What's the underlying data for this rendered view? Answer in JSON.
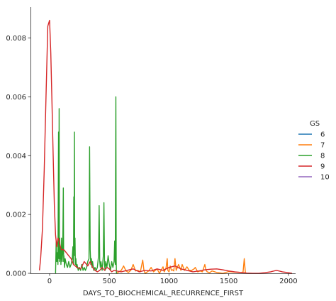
{
  "chart_data": {
    "type": "line",
    "xlabel": "DAYS_TO_BIOCHEMICAL_RECURRENCE_FIRST",
    "ylabel": "",
    "xlim": [
      -160,
      2060
    ],
    "ylim": [
      0,
      0.00905
    ],
    "x_ticks": [
      0,
      500,
      1000,
      1500,
      2000
    ],
    "x_tick_labels": [
      "0",
      "500",
      "1000",
      "1500",
      "2000"
    ],
    "y_ticks": [
      0,
      0.002,
      0.004,
      0.006,
      0.008
    ],
    "y_tick_labels": [
      "0.000",
      "0.002",
      "0.004",
      "0.006",
      "0.008"
    ],
    "grid": false,
    "legend": {
      "title": "GS",
      "placement": "right",
      "entries": [
        {
          "label": "6",
          "color": "#1f77b4"
        },
        {
          "label": "7",
          "color": "#ff7f0e"
        },
        {
          "label": "8",
          "color": "#2ca02c"
        },
        {
          "label": "9",
          "color": "#d62728"
        },
        {
          "label": "10",
          "color": "#9467bd"
        }
      ]
    },
    "series": [
      {
        "name": "7",
        "color": "#ff7f0e",
        "x": [
          560,
          580,
          600,
          620,
          640,
          660,
          680,
          700,
          720,
          740,
          760,
          780,
          790,
          800,
          830,
          850,
          870,
          900,
          920,
          950,
          960,
          975,
          985,
          990,
          1000,
          1010,
          1020,
          1030,
          1040,
          1050,
          1060,
          1070,
          1080,
          1100,
          1110,
          1130,
          1150,
          1170,
          1190,
          1210,
          1220,
          1240,
          1260,
          1280,
          1300,
          1310,
          1320,
          1340,
          1360,
          1400,
          1450,
          1500,
          1550,
          1600,
          1620,
          1630,
          1640
        ],
        "values": [
          0.0,
          5e-05,
          0.0001,
          0.00025,
          8e-05,
          3e-05,
          0.0001,
          0.0003,
          8e-05,
          0.0001,
          5e-05,
          0.00045,
          0.0001,
          0.0,
          8e-05,
          0.0002,
          5e-05,
          0.00015,
          0.0,
          0.00022,
          5e-05,
          0.00018,
          0.0005,
          0.0001,
          5e-05,
          0.00025,
          0.0001,
          0.00012,
          8e-05,
          0.0005,
          0.0001,
          0.0002,
          0.0003,
          0.0001,
          0.0003,
          0.0001,
          0.00022,
          0.0001,
          0.0001,
          0.00015,
          0.0002,
          5e-05,
          8e-05,
          5e-05,
          0.0003,
          0.0001,
          5e-05,
          2e-05,
          8e-05,
          3e-05,
          0.0,
          6e-05,
          4e-05,
          3e-05,
          4e-05,
          0.0005,
          0.0
        ]
      },
      {
        "name": "8",
        "color": "#2ca02c",
        "x": [
          50,
          55,
          60,
          65,
          70,
          75,
          78,
          80,
          82,
          85,
          88,
          90,
          95,
          100,
          105,
          110,
          115,
          118,
          120,
          125,
          130,
          140,
          150,
          160,
          170,
          180,
          190,
          195,
          200,
          203,
          205,
          208,
          210,
          213,
          216,
          220,
          225,
          230,
          240,
          250,
          260,
          270,
          280,
          290,
          300,
          310,
          320,
          330,
          335,
          340,
          345,
          350,
          355,
          360,
          370,
          380,
          390,
          400,
          410,
          415,
          420,
          425,
          430,
          440,
          450,
          455,
          460,
          465,
          470,
          480,
          490,
          500,
          510,
          520,
          530,
          540,
          545,
          550,
          555,
          558,
          560
        ],
        "values": [
          0.0,
          0.0011,
          0.0004,
          0.0007,
          0.0003,
          0.0048,
          0.0005,
          0.0056,
          0.0004,
          0.0012,
          0.0005,
          0.0009,
          0.0003,
          0.0012,
          0.0004,
          0.0007,
          0.0029,
          0.0004,
          0.0006,
          0.0002,
          0.0005,
          0.0003,
          0.0002,
          0.0004,
          0.0002,
          0.0003,
          0.0005,
          0.0009,
          0.0003,
          0.0026,
          0.0008,
          0.0048,
          0.0006,
          0.0012,
          0.0003,
          0.0005,
          0.0002,
          0.0003,
          0.0001,
          0.0002,
          0.0001,
          0.0003,
          0.0001,
          0.0002,
          0.0001,
          0.0002,
          0.0004,
          0.0005,
          0.0043,
          0.0008,
          0.0003,
          0.0005,
          0.0002,
          0.0004,
          0.0001,
          0.0002,
          0.0001,
          0.0002,
          0.0006,
          0.0023,
          0.0004,
          0.0002,
          0.0004,
          0.0001,
          0.0006,
          0.0024,
          0.0003,
          0.0001,
          0.0004,
          0.0002,
          0.0006,
          0.0003,
          0.0001,
          0.0004,
          0.0002,
          0.0004,
          0.0011,
          0.0003,
          0.006,
          0.0004,
          0.0
        ]
      },
      {
        "name": "9",
        "color": "#d62728",
        "x": [
          -85,
          -75,
          -60,
          -45,
          -30,
          -15,
          -8,
          0,
          10,
          20,
          30,
          40,
          50,
          60,
          70,
          80,
          90,
          100,
          120,
          140,
          160,
          180,
          200,
          230,
          260,
          290,
          320,
          340,
          360,
          380,
          400,
          420,
          440,
          460,
          480,
          500,
          520,
          540,
          560,
          600,
          650,
          700,
          750,
          800,
          850,
          900,
          950,
          1000,
          1050,
          1100,
          1150,
          1200,
          1250,
          1300,
          1350,
          1400,
          1450,
          1500,
          1550,
          1600,
          1650,
          1700,
          1750,
          1800,
          1850,
          1900,
          1950,
          2000,
          2030
        ],
        "values": [
          0.0001,
          0.0005,
          0.0015,
          0.0035,
          0.006,
          0.0084,
          0.0085,
          0.0086,
          0.0075,
          0.0058,
          0.004,
          0.0023,
          0.0013,
          0.0009,
          0.0012,
          0.0011,
          0.0009,
          0.0008,
          0.0008,
          0.0007,
          0.0006,
          0.0005,
          0.0003,
          0.0002,
          0.00015,
          0.0004,
          0.00025,
          0.0004,
          0.0002,
          0.0001,
          5e-05,
          0.0001,
          0.0002,
          0.0001,
          0.0002,
          0.00015,
          5e-05,
          0.0001,
          8e-05,
          5e-05,
          0.0001,
          0.00015,
          5e-05,
          0.0001,
          8e-05,
          0.00015,
          0.0001,
          0.0002,
          0.00025,
          0.00015,
          0.0001,
          5e-05,
          8e-05,
          0.00012,
          0.00014,
          0.00015,
          0.00012,
          8e-05,
          5e-05,
          3e-05,
          1e-05,
          0.0,
          0.0,
          2e-05,
          5e-05,
          0.0001,
          5e-05,
          2e-05,
          0.0
        ]
      }
    ]
  }
}
